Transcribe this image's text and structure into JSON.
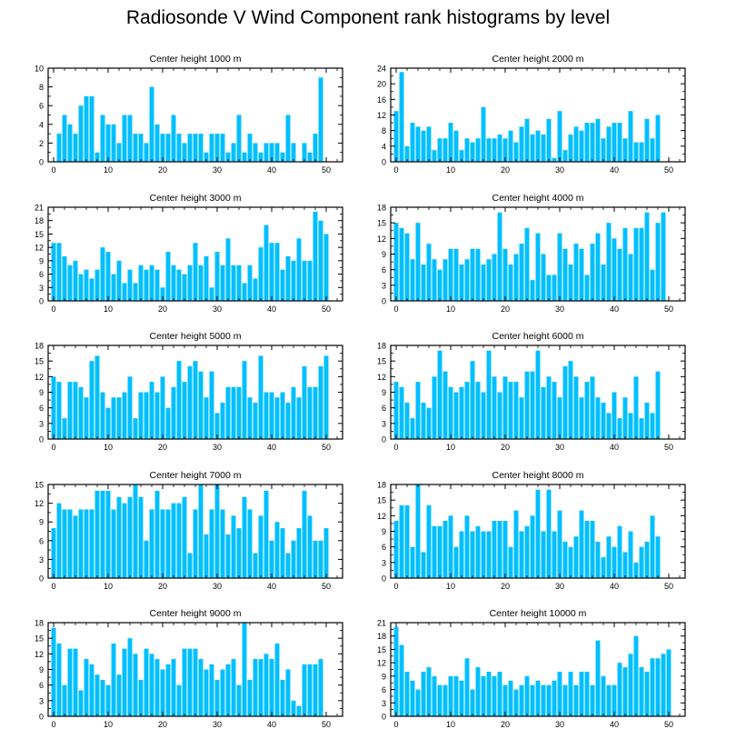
{
  "title": "Radiosonde V Wind Component rank histograms by level",
  "bar_color": "#00bfff",
  "chart_data": [
    {
      "type": "bar",
      "title": "Center height 1000 m",
      "ylim": [
        0,
        10
      ],
      "yticks": [
        0,
        2,
        4,
        6,
        8,
        10
      ],
      "xlim": [
        -1,
        53
      ],
      "xticks": [
        0,
        10,
        20,
        30,
        40,
        50
      ],
      "x": [
        0,
        1,
        2,
        3,
        4,
        5,
        6,
        7,
        8,
        9,
        10,
        11,
        12,
        13,
        14,
        15,
        16,
        17,
        18,
        19,
        20,
        21,
        22,
        23,
        24,
        25,
        26,
        27,
        28,
        29,
        30,
        31,
        32,
        33,
        34,
        35,
        36,
        37,
        38,
        39,
        40,
        41,
        42,
        43,
        44,
        45,
        46,
        47,
        48,
        49,
        50,
        51
      ],
      "values": [
        0,
        3,
        5,
        4,
        3,
        6,
        7,
        7,
        1,
        5,
        4,
        4,
        2,
        5,
        5,
        3,
        3,
        2,
        8,
        4,
        3,
        3,
        5,
        3,
        2,
        3,
        3,
        3,
        1,
        3,
        3,
        3,
        1,
        2,
        5,
        1,
        3,
        2,
        1,
        2,
        2,
        2,
        1,
        5,
        2,
        0,
        2,
        1,
        3,
        9,
        0,
        0
      ]
    },
    {
      "type": "bar",
      "title": "Center height 2000 m",
      "ylim": [
        0,
        24
      ],
      "yticks": [
        0,
        4,
        8,
        12,
        16,
        20,
        24
      ],
      "xlim": [
        -1,
        53
      ],
      "xticks": [
        0,
        10,
        20,
        30,
        40,
        50
      ],
      "x": [
        0,
        1,
        2,
        3,
        4,
        5,
        6,
        7,
        8,
        9,
        10,
        11,
        12,
        13,
        14,
        15,
        16,
        17,
        18,
        19,
        20,
        21,
        22,
        23,
        24,
        25,
        26,
        27,
        28,
        29,
        30,
        31,
        32,
        33,
        34,
        35,
        36,
        37,
        38,
        39,
        40,
        41,
        42,
        43,
        44,
        45,
        46,
        47,
        48,
        49,
        50,
        51
      ],
      "values": [
        13,
        23,
        4,
        10,
        9,
        8,
        9,
        3,
        6,
        6,
        10,
        8,
        3,
        6,
        5,
        6,
        14,
        6,
        6,
        7,
        6,
        8,
        5,
        9,
        11,
        7,
        8,
        7,
        11,
        1,
        13,
        3,
        7,
        9,
        8,
        10,
        10,
        11,
        6,
        9,
        10,
        10,
        6,
        13,
        5,
        5,
        11,
        6,
        12,
        0,
        0,
        0
      ]
    },
    {
      "type": "bar",
      "title": "Center height 3000 m",
      "ylim": [
        0,
        21
      ],
      "yticks": [
        0,
        3,
        6,
        9,
        12,
        15,
        18,
        21
      ],
      "xlim": [
        -1,
        53
      ],
      "xticks": [
        0,
        10,
        20,
        30,
        40,
        50
      ],
      "x": [
        0,
        1,
        2,
        3,
        4,
        5,
        6,
        7,
        8,
        9,
        10,
        11,
        12,
        13,
        14,
        15,
        16,
        17,
        18,
        19,
        20,
        21,
        22,
        23,
        24,
        25,
        26,
        27,
        28,
        29,
        30,
        31,
        32,
        33,
        34,
        35,
        36,
        37,
        38,
        39,
        40,
        41,
        42,
        43,
        44,
        45,
        46,
        47,
        48,
        49,
        50,
        51
      ],
      "values": [
        13,
        13,
        10,
        8,
        9,
        6,
        7,
        5,
        7,
        12,
        11,
        6,
        9,
        4,
        7,
        4,
        8,
        7,
        8,
        7,
        3,
        11,
        8,
        7,
        6,
        8,
        13,
        8,
        10,
        3,
        11,
        8,
        14,
        8,
        8,
        4,
        8,
        5,
        12,
        17,
        13,
        13,
        7,
        10,
        9,
        14,
        9,
        9,
        20,
        18,
        15,
        0
      ]
    },
    {
      "type": "bar",
      "title": "Center height 4000 m",
      "ylim": [
        0,
        18
      ],
      "yticks": [
        0,
        3,
        6,
        9,
        12,
        15,
        18
      ],
      "xlim": [
        -1,
        53
      ],
      "xticks": [
        0,
        10,
        20,
        30,
        40,
        50
      ],
      "x": [
        0,
        1,
        2,
        3,
        4,
        5,
        6,
        7,
        8,
        9,
        10,
        11,
        12,
        13,
        14,
        15,
        16,
        17,
        18,
        19,
        20,
        21,
        22,
        23,
        24,
        25,
        26,
        27,
        28,
        29,
        30,
        31,
        32,
        33,
        34,
        35,
        36,
        37,
        38,
        39,
        40,
        41,
        42,
        43,
        44,
        45,
        46,
        47,
        48,
        49,
        50,
        51
      ],
      "values": [
        15,
        14,
        13,
        8,
        15,
        7,
        11,
        8,
        6,
        8,
        10,
        10,
        7,
        8,
        10,
        10,
        7,
        8,
        9,
        17,
        10,
        7,
        9,
        11,
        14,
        4,
        13,
        9,
        5,
        5,
        13,
        10,
        7,
        11,
        10,
        5,
        11,
        13,
        7,
        15,
        12,
        10,
        14,
        9,
        14,
        14,
        17,
        6,
        15,
        17,
        0,
        0
      ]
    },
    {
      "type": "bar",
      "title": "Center height 5000 m",
      "ylim": [
        0,
        18
      ],
      "yticks": [
        0,
        3,
        6,
        9,
        12,
        15,
        18
      ],
      "xlim": [
        -1,
        53
      ],
      "xticks": [
        0,
        10,
        20,
        30,
        40,
        50
      ],
      "x": [
        0,
        1,
        2,
        3,
        4,
        5,
        6,
        7,
        8,
        9,
        10,
        11,
        12,
        13,
        14,
        15,
        16,
        17,
        18,
        19,
        20,
        21,
        22,
        23,
        24,
        25,
        26,
        27,
        28,
        29,
        30,
        31,
        32,
        33,
        34,
        35,
        36,
        37,
        38,
        39,
        40,
        41,
        42,
        43,
        44,
        45,
        46,
        47,
        48,
        49,
        50,
        51
      ],
      "values": [
        12,
        11,
        4,
        11,
        11,
        10,
        8,
        15,
        16,
        9,
        6,
        8,
        8,
        9,
        12,
        4,
        9,
        9,
        11,
        9,
        12,
        6,
        10,
        15,
        11,
        14,
        15,
        13,
        8,
        13,
        5,
        7,
        10,
        10,
        10,
        15,
        8,
        7,
        16,
        9,
        9,
        8,
        9,
        7,
        10,
        8,
        14,
        10,
        10,
        14,
        16,
        0
      ]
    },
    {
      "type": "bar",
      "title": "Center height 6000 m",
      "ylim": [
        0,
        18
      ],
      "yticks": [
        0,
        3,
        6,
        9,
        12,
        15,
        18
      ],
      "xlim": [
        -1,
        53
      ],
      "xticks": [
        0,
        10,
        20,
        30,
        40,
        50
      ],
      "x": [
        0,
        1,
        2,
        3,
        4,
        5,
        6,
        7,
        8,
        9,
        10,
        11,
        12,
        13,
        14,
        15,
        16,
        17,
        18,
        19,
        20,
        21,
        22,
        23,
        24,
        25,
        26,
        27,
        28,
        29,
        30,
        31,
        32,
        33,
        34,
        35,
        36,
        37,
        38,
        39,
        40,
        41,
        42,
        43,
        44,
        45,
        46,
        47,
        48,
        49,
        50,
        51
      ],
      "values": [
        11,
        10,
        7,
        4,
        11,
        7,
        6,
        12,
        17,
        13,
        10,
        9,
        10,
        11,
        15,
        11,
        9,
        17,
        12,
        9,
        12,
        11,
        11,
        8,
        13,
        13,
        17,
        10,
        12,
        11,
        8,
        14,
        15,
        12,
        8,
        11,
        12,
        8,
        7,
        5,
        9,
        4,
        8,
        5,
        12,
        4,
        7,
        5,
        13,
        0,
        0,
        0
      ]
    },
    {
      "type": "bar",
      "title": "Center height 7000 m",
      "ylim": [
        0,
        15
      ],
      "yticks": [
        0,
        3,
        6,
        9,
        12,
        15
      ],
      "xlim": [
        -1,
        53
      ],
      "xticks": [
        0,
        10,
        20,
        30,
        40,
        50
      ],
      "x": [
        0,
        1,
        2,
        3,
        4,
        5,
        6,
        7,
        8,
        9,
        10,
        11,
        12,
        13,
        14,
        15,
        16,
        17,
        18,
        19,
        20,
        21,
        22,
        23,
        24,
        25,
        26,
        27,
        28,
        29,
        30,
        31,
        32,
        33,
        34,
        35,
        36,
        37,
        38,
        39,
        40,
        41,
        42,
        43,
        44,
        45,
        46,
        47,
        48,
        49,
        50,
        51
      ],
      "values": [
        8,
        12,
        11,
        11,
        10,
        11,
        11,
        11,
        14,
        14,
        14,
        11,
        13,
        12,
        13,
        15,
        13,
        6,
        11,
        14,
        11,
        11,
        12,
        12,
        13,
        4,
        11,
        15,
        7,
        11,
        15,
        11,
        7,
        10,
        8,
        13,
        11,
        4,
        10,
        14,
        6,
        9,
        8,
        4,
        6,
        8,
        14,
        10,
        6,
        6,
        8,
        0
      ]
    },
    {
      "type": "bar",
      "title": "Center height 8000 m",
      "ylim": [
        0,
        18
      ],
      "yticks": [
        0,
        3,
        6,
        9,
        12,
        15,
        18
      ],
      "xlim": [
        -1,
        53
      ],
      "xticks": [
        0,
        10,
        20,
        30,
        40,
        50
      ],
      "x": [
        0,
        1,
        2,
        3,
        4,
        5,
        6,
        7,
        8,
        9,
        10,
        11,
        12,
        13,
        14,
        15,
        16,
        17,
        18,
        19,
        20,
        21,
        22,
        23,
        24,
        25,
        26,
        27,
        28,
        29,
        30,
        31,
        32,
        33,
        34,
        35,
        36,
        37,
        38,
        39,
        40,
        41,
        42,
        43,
        44,
        45,
        46,
        47,
        48,
        49,
        50,
        51
      ],
      "values": [
        11,
        14,
        14,
        6,
        18,
        5,
        14,
        10,
        10,
        11,
        12,
        6,
        9,
        12,
        9,
        10,
        9,
        9,
        11,
        11,
        11,
        6,
        13,
        9,
        10,
        12,
        17,
        9,
        17,
        9,
        13,
        7,
        6,
        8,
        13,
        11,
        11,
        7,
        4,
        8,
        6,
        10,
        5,
        9,
        3,
        6,
        7,
        12,
        8,
        0,
        0,
        0
      ]
    },
    {
      "type": "bar",
      "title": "Center height 9000 m",
      "ylim": [
        0,
        18
      ],
      "yticks": [
        0,
        3,
        6,
        9,
        12,
        15,
        18
      ],
      "xlim": [
        -1,
        53
      ],
      "xticks": [
        0,
        10,
        20,
        30,
        40,
        50
      ],
      "x": [
        0,
        1,
        2,
        3,
        4,
        5,
        6,
        7,
        8,
        9,
        10,
        11,
        12,
        13,
        14,
        15,
        16,
        17,
        18,
        19,
        20,
        21,
        22,
        23,
        24,
        25,
        26,
        27,
        28,
        29,
        30,
        31,
        32,
        33,
        34,
        35,
        36,
        37,
        38,
        39,
        40,
        41,
        42,
        43,
        44,
        45,
        46,
        47,
        48,
        49,
        50,
        51
      ],
      "values": [
        17,
        14,
        6,
        13,
        13,
        5,
        11,
        10,
        8,
        7,
        6,
        14,
        8,
        13,
        15,
        12,
        7,
        13,
        12,
        11,
        9,
        10,
        11,
        6,
        13,
        13,
        13,
        11,
        9,
        10,
        7,
        9,
        10,
        11,
        6,
        18,
        7,
        11,
        11,
        12,
        11,
        14,
        7,
        9,
        3,
        2,
        10,
        10,
        10,
        11,
        0,
        0
      ]
    },
    {
      "type": "bar",
      "title": "Center height 10000 m",
      "ylim": [
        0,
        21
      ],
      "yticks": [
        0,
        3,
        6,
        9,
        12,
        15,
        18,
        21
      ],
      "xlim": [
        -1,
        53
      ],
      "xticks": [
        0,
        10,
        20,
        30,
        40,
        50
      ],
      "x": [
        0,
        1,
        2,
        3,
        4,
        5,
        6,
        7,
        8,
        9,
        10,
        11,
        12,
        13,
        14,
        15,
        16,
        17,
        18,
        19,
        20,
        21,
        22,
        23,
        24,
        25,
        26,
        27,
        28,
        29,
        30,
        31,
        32,
        33,
        34,
        35,
        36,
        37,
        38,
        39,
        40,
        41,
        42,
        43,
        44,
        45,
        46,
        47,
        48,
        49,
        50,
        51
      ],
      "values": [
        20,
        16,
        10,
        8,
        6,
        10,
        11,
        9,
        7,
        7,
        9,
        9,
        8,
        13,
        6,
        11,
        9,
        10,
        9,
        10,
        7,
        8,
        6,
        7,
        9,
        7,
        8,
        7,
        7,
        8,
        10,
        7,
        10,
        7,
        10,
        10,
        7,
        17,
        9,
        7,
        7,
        12,
        11,
        14,
        18,
        11,
        10,
        13,
        13,
        14,
        15,
        0
      ]
    }
  ]
}
